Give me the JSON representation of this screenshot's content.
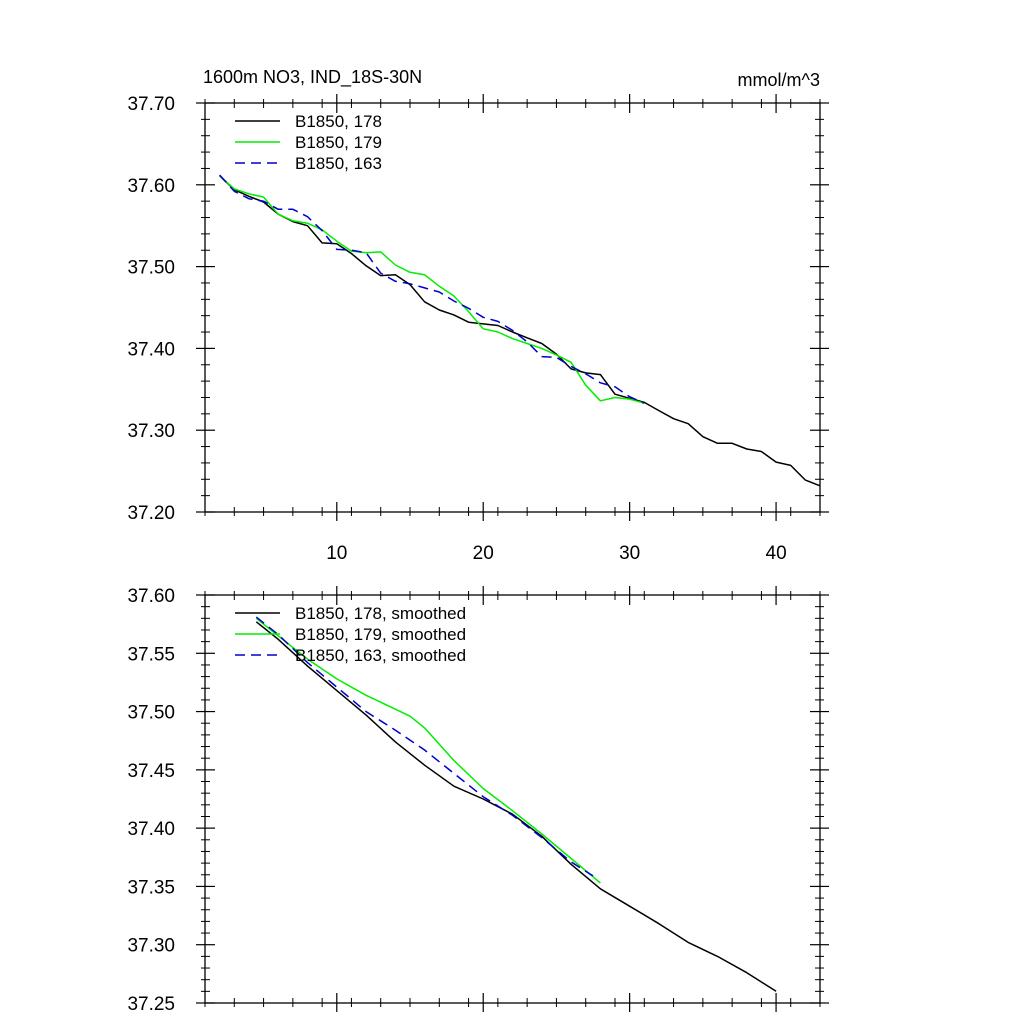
{
  "chart_data": [
    {
      "type": "line",
      "title": "1600m NO3, IND_18S-30N",
      "units": "mmol/m^3",
      "xlabel": "",
      "ylabel": "",
      "xlim": [
        1,
        43
      ],
      "ylim": [
        37.2,
        37.7
      ],
      "xticks": [
        10,
        20,
        30,
        40
      ],
      "xtick_labels": [
        "10",
        "20",
        "30",
        "40"
      ],
      "yticks": [
        37.2,
        37.3,
        37.4,
        37.5,
        37.6,
        37.7
      ],
      "ytick_labels": [
        "37.20",
        "37.30",
        "37.40",
        "37.50",
        "37.60",
        "37.70"
      ],
      "legend_position": "top-left",
      "series": [
        {
          "name": "B1850, 178",
          "color": "#000000",
          "dash": "solid",
          "x": [
            2,
            3,
            4,
            5,
            6,
            7,
            8,
            9,
            10,
            11,
            12,
            13,
            14,
            15,
            16,
            17,
            18,
            19,
            20,
            21,
            22,
            23,
            24,
            25,
            26,
            27,
            28,
            29,
            30,
            31,
            32,
            33,
            34,
            35,
            36,
            37,
            38,
            39,
            40,
            41,
            42,
            43
          ],
          "y": [
            37.611,
            37.594,
            37.586,
            37.579,
            37.564,
            37.555,
            37.55,
            37.529,
            37.528,
            37.516,
            37.501,
            37.489,
            37.49,
            37.478,
            37.457,
            37.447,
            37.441,
            37.432,
            37.43,
            37.428,
            37.42,
            37.413,
            37.406,
            37.393,
            37.375,
            37.37,
            37.368,
            37.344,
            37.339,
            37.334,
            37.324,
            37.314,
            37.308,
            37.292,
            37.284,
            37.284,
            37.277,
            37.274,
            37.261,
            37.257,
            37.239,
            37.232
          ]
        },
        {
          "name": "B1850, 179",
          "color": "#00ee00",
          "dash": "solid",
          "x": [
            2,
            3,
            4,
            5,
            6,
            7,
            8,
            9,
            10,
            11,
            12,
            13,
            14,
            15,
            16,
            17,
            18,
            19,
            20,
            21,
            22,
            23,
            24,
            25,
            26,
            27,
            28,
            29,
            30,
            31
          ],
          "y": [
            37.611,
            37.595,
            37.589,
            37.585,
            37.564,
            37.556,
            37.553,
            37.545,
            37.531,
            37.519,
            37.517,
            37.518,
            37.502,
            37.493,
            37.49,
            37.476,
            37.464,
            37.445,
            37.424,
            37.42,
            37.412,
            37.406,
            37.4,
            37.392,
            37.383,
            37.355,
            37.336,
            37.34,
            37.338,
            37.333
          ]
        },
        {
          "name": "B1850, 163",
          "color": "#0000cc",
          "dash": "dashed",
          "x": [
            2,
            3,
            4,
            5,
            6,
            7,
            8,
            9,
            10,
            11,
            12,
            13,
            14,
            15,
            16,
            17,
            18,
            19,
            20,
            21,
            22,
            23,
            24,
            25,
            26,
            27,
            28,
            29,
            30,
            31
          ],
          "y": [
            37.612,
            37.592,
            37.583,
            37.58,
            37.57,
            37.57,
            37.561,
            37.544,
            37.521,
            37.52,
            37.517,
            37.492,
            37.482,
            37.479,
            37.474,
            37.469,
            37.458,
            37.449,
            37.438,
            37.433,
            37.422,
            37.408,
            37.39,
            37.389,
            37.378,
            37.369,
            37.358,
            37.353,
            37.341,
            37.333
          ]
        }
      ]
    },
    {
      "type": "line",
      "title": "",
      "xlabel": "",
      "ylabel": "",
      "xlim": [
        1,
        43
      ],
      "ylim": [
        37.25,
        37.6
      ],
      "xticks": [
        10,
        20,
        30,
        40
      ],
      "xtick_labels": [],
      "yticks": [
        37.25,
        37.3,
        37.35,
        37.4,
        37.45,
        37.5,
        37.55,
        37.6
      ],
      "ytick_labels": [
        "37.25",
        "37.30",
        "37.35",
        "37.40",
        "37.45",
        "37.50",
        "37.55",
        "37.60"
      ],
      "legend_position": "top-left",
      "series": [
        {
          "name": "B1850, 178, smoothed",
          "color": "#000000",
          "dash": "solid",
          "x": [
            4.5,
            6,
            8,
            10,
            12,
            14,
            16,
            18,
            20,
            22,
            24,
            26,
            28,
            30,
            32,
            34,
            36,
            38,
            40
          ],
          "y": [
            37.577,
            37.562,
            37.539,
            37.518,
            37.497,
            37.474,
            37.454,
            37.436,
            37.425,
            37.412,
            37.393,
            37.369,
            37.348,
            37.333,
            37.318,
            37.302,
            37.29,
            37.276,
            37.26
          ]
        },
        {
          "name": "B1850, 179, smoothed",
          "color": "#00ee00",
          "dash": "solid",
          "x": [
            4.5,
            6,
            8,
            10,
            12,
            14,
            15,
            16,
            18,
            20,
            22,
            24,
            26,
            28
          ],
          "y": [
            37.58,
            37.565,
            37.545,
            37.528,
            37.514,
            37.502,
            37.496,
            37.486,
            37.458,
            37.434,
            37.415,
            37.395,
            37.374,
            37.353
          ]
        },
        {
          "name": "B1850, 163, smoothed",
          "color": "#0000cc",
          "dash": "dashed",
          "x": [
            4.5,
            6,
            8,
            10,
            12,
            14,
            16,
            18,
            20,
            22,
            24,
            26,
            27.5
          ],
          "y": [
            37.581,
            37.566,
            37.542,
            37.521,
            37.5,
            37.484,
            37.467,
            37.447,
            37.427,
            37.411,
            37.392,
            37.371,
            37.359
          ]
        }
      ]
    }
  ]
}
